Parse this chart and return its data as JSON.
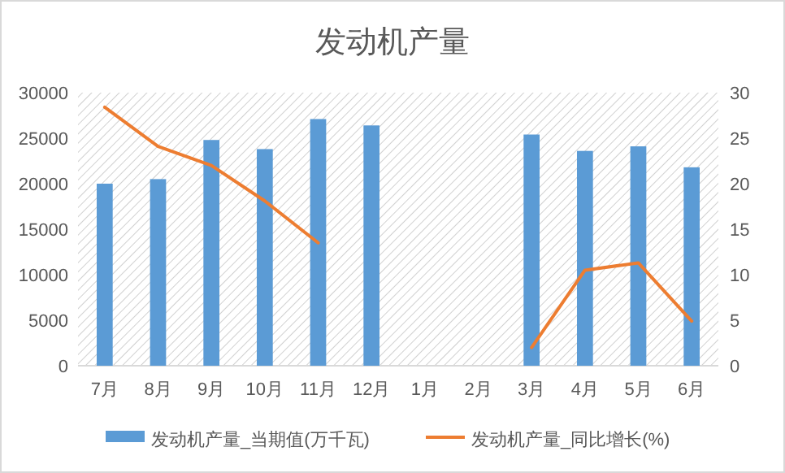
{
  "chart_data": {
    "type": "bar",
    "title": "发动机产量",
    "categories": [
      "7月",
      "8月",
      "9月",
      "10月",
      "11月",
      "12月",
      "1月",
      "2月",
      "3月",
      "4月",
      "5月",
      "6月"
    ],
    "series": [
      {
        "name": "发动机产量_当期值(万千瓦)",
        "color": "#5b9bd5",
        "values": [
          20000,
          20500,
          24800,
          23800,
          27100,
          26400,
          null,
          null,
          25400,
          23600,
          24100,
          21800
        ]
      },
      {
        "name": "发动机产量_同比增长(%)",
        "type": "line",
        "axis": "y2",
        "color": "#ed7d31",
        "values": [
          28.4,
          24.1,
          22.0,
          18.1,
          13.5,
          null,
          null,
          null,
          2.0,
          10.5,
          11.3,
          4.9
        ]
      }
    ],
    "ylim": [
      0,
      30000
    ],
    "yticks": [
      0,
      5000,
      10000,
      15000,
      20000,
      25000,
      30000
    ],
    "y2lim": [
      0,
      30
    ],
    "y2ticks": [
      0,
      5,
      10,
      15,
      20,
      25,
      30
    ],
    "legend": "bottom",
    "grid": false,
    "marker": "none",
    "line_style": "solid"
  }
}
